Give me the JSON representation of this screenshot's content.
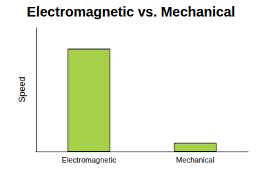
{
  "chart_data": {
    "type": "bar",
    "title": "Electromagnetic vs. Mechanical",
    "ylabel": "Speed",
    "categories": [
      "Electromagnetic",
      "Mechanical"
    ],
    "values": [
      83,
      7
    ],
    "color": "#a6d04a",
    "ylim": [
      0,
      100
    ],
    "grid": false,
    "tick_labels": "x"
  }
}
